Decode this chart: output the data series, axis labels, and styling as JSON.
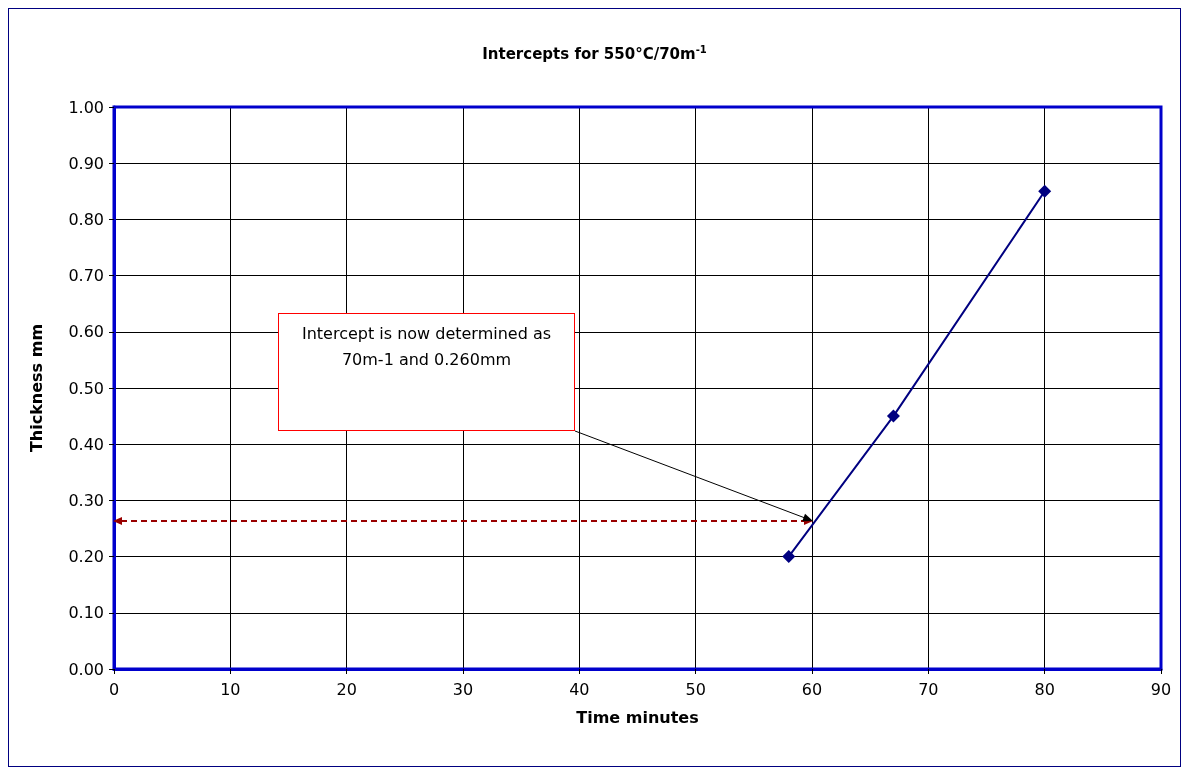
{
  "chart_data": {
    "type": "line",
    "title": "Intercepts for 550°C/70m$^{-1}$",
    "xlabel": "Time minutes",
    "ylabel": "Thickness mm",
    "xlim": [
      0,
      90
    ],
    "xticks": [
      0,
      10,
      20,
      30,
      40,
      50,
      60,
      70,
      80,
      90
    ],
    "ylim": [
      0,
      1
    ],
    "yticks": [
      {
        "value": 0,
        "label": "0.00"
      },
      {
        "value": 0.1,
        "label": "0.10"
      },
      {
        "value": 0.2,
        "label": "0.20"
      },
      {
        "value": 0.3,
        "label": "0.30"
      },
      {
        "value": 0.4,
        "label": "0.40"
      },
      {
        "value": 0.5,
        "label": "0.50"
      },
      {
        "value": 0.6,
        "label": "0.60"
      },
      {
        "value": 0.7,
        "label": "0.70"
      },
      {
        "value": 0.8,
        "label": "0.80"
      },
      {
        "value": 0.9,
        "label": "0.90"
      },
      {
        "value": 1,
        "label": "1.00"
      }
    ],
    "series": [
      {
        "color": "#000080",
        "x": [
          58,
          67,
          80
        ],
        "values": [
          0.2,
          0.45,
          0.85
        ],
        "marker": "diamond",
        "line_style": "solid"
      }
    ],
    "annotations": [
      "Intercept is now determined as 70m-1 and 0.260mm"
    ],
    "grid": true
  }
}
